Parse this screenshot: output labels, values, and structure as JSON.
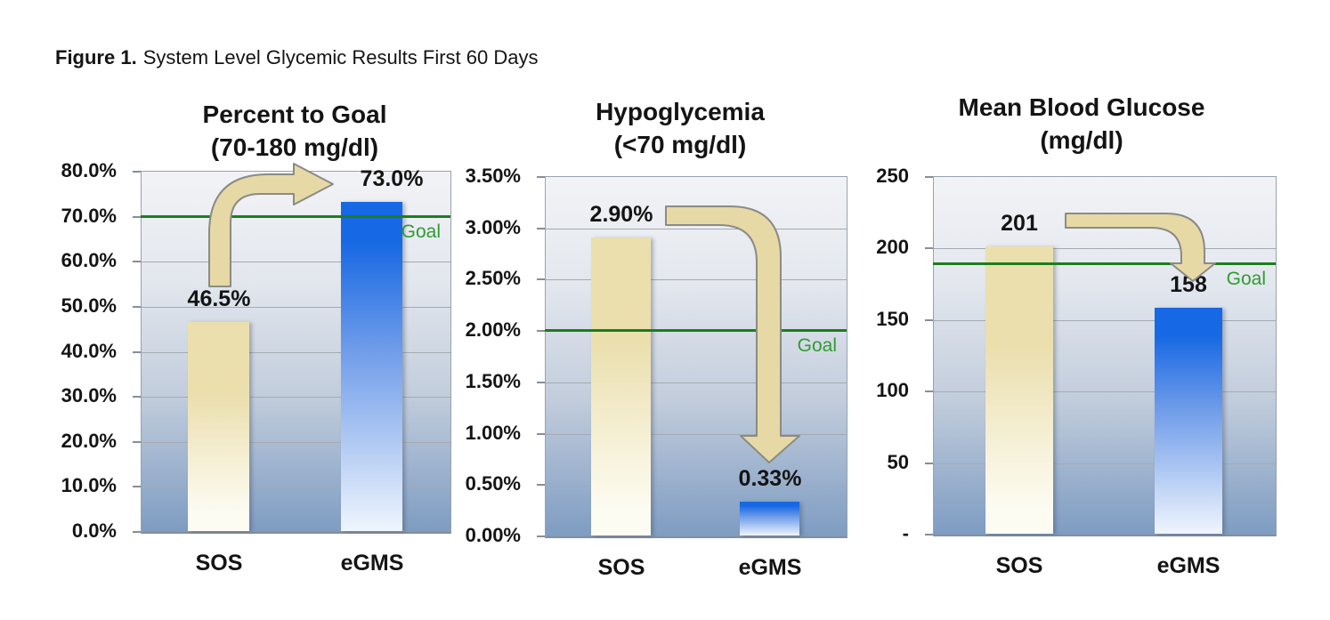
{
  "figure": {
    "label": "Figure 1.",
    "title": "System Level Glycemic Results First 60 Days"
  },
  "goal_label": "Goal",
  "colors": {
    "plot_gradient_top": "#f2f3f6",
    "plot_gradient_mid": "#c2cddc",
    "plot_gradient_bottom": "#7e9cc2",
    "gridline": "#a4aab1",
    "sos_bar_top": "#ebdfae",
    "sos_bar_bottom": "#fdfcf3",
    "egms_bar_top": "#1668e4",
    "egms_bar_mid": "#6f9ce9",
    "egms_bar_bottom": "#eff5fd",
    "goal_line": "#1d7d1d",
    "goal_text": "#2f9c2f",
    "arrow_fill": "#e6d9a6",
    "arrow_stroke": "#8b8b85"
  },
  "chart_data": [
    {
      "type": "bar",
      "title_line1": "Percent to Goal",
      "title_line2": "(70-180 mg/dl)",
      "categories": [
        "SOS",
        "eGMS"
      ],
      "values": [
        46.5,
        73.0
      ],
      "value_labels": [
        "46.5%",
        "73.0%"
      ],
      "ylim": [
        0,
        80
      ],
      "ytick_labels": [
        "0.0%",
        "10.0%",
        "20.0%",
        "30.0%",
        "40.0%",
        "50.0%",
        "60.0%",
        "70.0%",
        "80.0%"
      ],
      "goal_value": 70,
      "goal_label": "Goal",
      "arrow_direction": "up-right",
      "grid": true,
      "legend": "none"
    },
    {
      "type": "bar",
      "title_line1": "Hypoglycemia",
      "title_line2": "(<70 mg/dl)",
      "categories": [
        "SOS",
        "eGMS"
      ],
      "values": [
        2.9,
        0.33
      ],
      "value_labels": [
        "2.90%",
        "0.33%"
      ],
      "ylim": [
        0,
        3.5
      ],
      "ytick_labels": [
        "0.00%",
        "0.50%",
        "1.00%",
        "1.50%",
        "2.00%",
        "2.50%",
        "3.00%",
        "3.50%"
      ],
      "goal_value": 2.0,
      "goal_label": "Goal",
      "arrow_direction": "right-down",
      "grid": true,
      "legend": "none"
    },
    {
      "type": "bar",
      "title_line1": "Mean Blood Glucose",
      "title_line2": "(mg/dl)",
      "categories": [
        "SOS",
        "eGMS"
      ],
      "values": [
        201,
        158
      ],
      "value_labels": [
        "201",
        "158"
      ],
      "ylim": [
        0,
        250
      ],
      "ytick_labels": [
        "-",
        "50",
        "100",
        "150",
        "200",
        "250"
      ],
      "goal_value": 189,
      "goal_label": "Goal",
      "arrow_direction": "right-down",
      "grid": true,
      "legend": "none"
    }
  ]
}
